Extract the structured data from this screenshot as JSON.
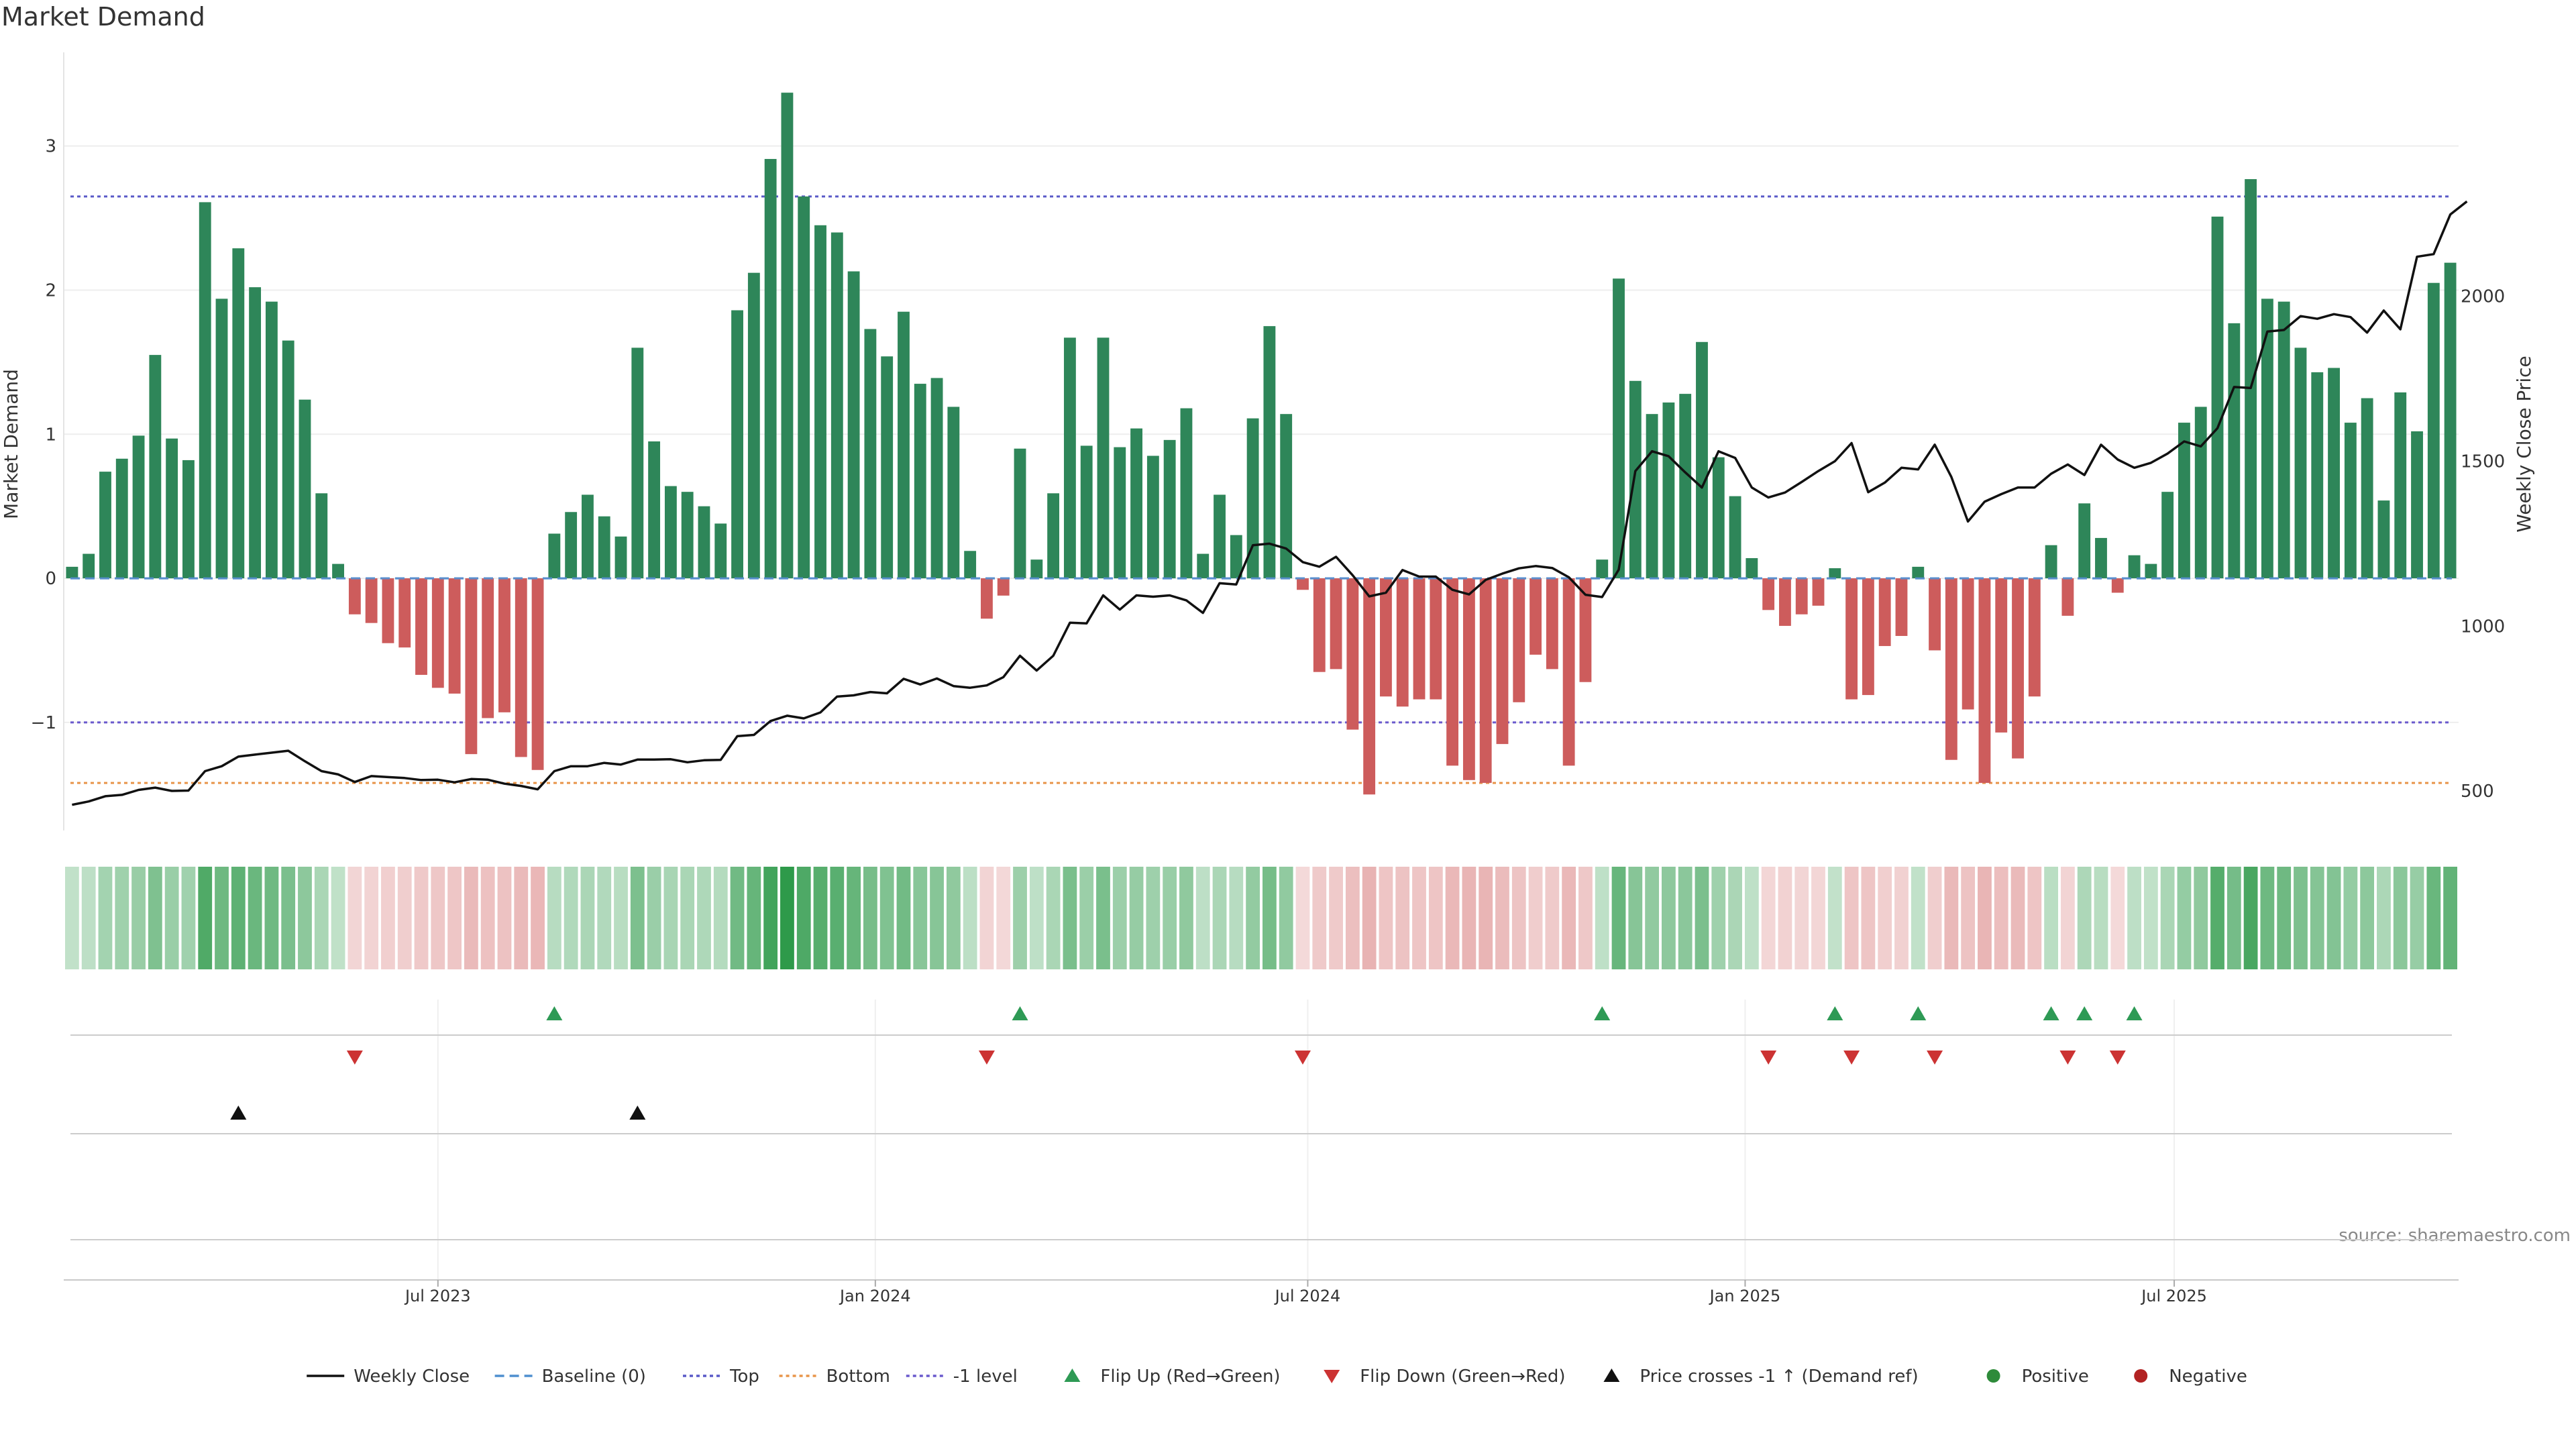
{
  "chart_data": {
    "type": "bar",
    "title": "Market Demand",
    "ylabel": "Market Demand",
    "y2label": "Weekly Close Price",
    "ylim": [
      -1.75,
      3.65
    ],
    "y2lim": [
      380,
      2740
    ],
    "yticks": [
      -1,
      0,
      1,
      2,
      3
    ],
    "yticks_labels": [
      "−1",
      "0",
      "1",
      "2",
      "3"
    ],
    "y2ticks": [
      500,
      1000,
      1500,
      2000
    ],
    "weeks_range": [
      -0.5,
      143.5
    ],
    "xticks": [
      {
        "label": "Jul 2023",
        "week": 22
      },
      {
        "label": "Jan 2024",
        "week": 48.3
      },
      {
        "label": "Jul 2024",
        "week": 74.3
      },
      {
        "label": "Jan 2025",
        "week": 100.6
      },
      {
        "label": "Jul 2025",
        "week": 126.4
      }
    ],
    "reference_lines": [
      {
        "name": "Top",
        "value": 2.65,
        "color": "#5a5ac8"
      },
      {
        "name": "-1 level",
        "value": -1.0,
        "color": "#6a5acd"
      },
      {
        "name": "Bottom",
        "value": -1.42,
        "color": "#e8954a"
      },
      {
        "name": "Baseline (0)",
        "value": 0,
        "color": "#4f8fcf"
      }
    ],
    "demand": [
      0.08,
      0.17,
      0.74,
      0.83,
      0.99,
      1.55,
      0.97,
      0.82,
      2.61,
      1.94,
      2.29,
      2.02,
      1.92,
      1.65,
      1.24,
      0.59,
      0.1,
      -0.25,
      -0.31,
      -0.45,
      -0.48,
      -0.67,
      -0.76,
      -0.8,
      -1.22,
      -0.97,
      -0.93,
      -1.24,
      -1.33,
      0.31,
      0.46,
      0.58,
      0.43,
      0.29,
      1.6,
      0.95,
      0.64,
      0.6,
      0.5,
      0.38,
      1.86,
      2.12,
      2.91,
      3.37,
      2.65,
      2.45,
      2.4,
      2.13,
      1.73,
      1.54,
      1.85,
      1.35,
      1.39,
      1.19,
      0.19,
      -0.28,
      -0.12,
      0.9,
      0.13,
      0.59,
      1.67,
      0.92,
      1.67,
      0.91,
      1.04,
      0.85,
      0.96,
      1.18,
      0.17,
      0.58,
      0.3,
      1.11,
      1.75,
      1.14,
      -0.08,
      -0.65,
      -0.63,
      -1.05,
      -1.5,
      -0.82,
      -0.89,
      -0.84,
      -0.84,
      -1.3,
      -1.4,
      -1.42,
      -1.15,
      -0.86,
      -0.53,
      -0.63,
      -1.3,
      -0.72,
      0.13,
      2.08,
      1.37,
      1.14,
      1.22,
      1.28,
      1.64,
      0.84,
      0.57,
      0.14,
      -0.22,
      -0.33,
      -0.25,
      -0.19,
      0.07,
      -0.84,
      -0.81,
      -0.47,
      -0.4,
      0.08,
      -0.5,
      -1.26,
      -0.91,
      -1.42,
      -1.07,
      -1.25,
      -0.82,
      0.23,
      -0.26,
      0.52,
      0.28,
      -0.1,
      0.16,
      0.1,
      0.6,
      1.08,
      1.19,
      2.51,
      1.77,
      2.77,
      1.94,
      1.92,
      1.6,
      1.43,
      1.46,
      1.08,
      1.25,
      0.54,
      1.29,
      1.02,
      2.05,
      2.19
    ],
    "price": [
      458,
      468,
      484,
      488,
      503,
      510,
      500,
      501,
      560,
      575,
      604,
      610,
      616,
      622,
      590,
      560,
      550,
      527,
      545,
      542,
      539,
      533,
      534,
      526,
      536,
      534,
      522,
      515,
      505,
      560,
      575,
      575,
      585,
      580,
      595,
      595,
      596,
      587,
      593,
      594,
      666,
      670,
      712,
      728,
      720,
      738,
      786,
      790,
      800,
      796,
      840,
      823,
      841,
      818,
      813,
      820,
      845,
      910,
      865,
      910,
      1010,
      1008,
      1093,
      1050,
      1093,
      1089,
      1093,
      1078,
      1040,
      1130,
      1126,
      1245,
      1250,
      1235,
      1194,
      1180,
      1210,
      1154,
      1090,
      1101,
      1170,
      1150,
      1150,
      1110,
      1096,
      1140,
      1159,
      1175,
      1182,
      1176,
      1148,
      1095,
      1088,
      1171,
      1470,
      1530,
      1515,
      1466,
      1420,
      1530,
      1510,
      1420,
      1390,
      1405,
      1437,
      1470,
      1500,
      1555,
      1406,
      1435,
      1480,
      1475,
      1550,
      1452,
      1317,
      1377,
      1400,
      1420,
      1420,
      1462,
      1490,
      1458,
      1550,
      1505,
      1480,
      1495,
      1523,
      1560,
      1545,
      1600,
      1725,
      1722,
      1893,
      1898,
      1940,
      1932,
      1946,
      1937,
      1890,
      1957,
      1900,
      2120,
      2128,
      2248,
      2288
    ],
    "flip_up_weeks": [
      29,
      57,
      92,
      106,
      111,
      119,
      121,
      124
    ],
    "flip_down_weeks": [
      17,
      55,
      74,
      102,
      107,
      112,
      120,
      123
    ],
    "price_cross_weeks": [
      10,
      34
    ],
    "watermark": "source: sharemaestro.com",
    "legend": [
      {
        "label": "Weekly Close",
        "kind": "line-solid",
        "color": "#111111"
      },
      {
        "label": "Baseline (0)",
        "kind": "line-dash",
        "color": "#4f8fcf"
      },
      {
        "label": "Top",
        "kind": "line-dot",
        "color": "#5a5ac8"
      },
      {
        "label": "Bottom",
        "kind": "line-dot",
        "color": "#e8954a"
      },
      {
        "label": "-1 level",
        "kind": "line-dot",
        "color": "#6a5acd"
      },
      {
        "label": "Flip Up (Red→Green)",
        "kind": "tri-up",
        "color": "#2e9a55"
      },
      {
        "label": "Flip Down (Green→Red)",
        "kind": "tri-down",
        "color": "#cc3333"
      },
      {
        "label": "Price crosses -1 ↑ (Demand ref)",
        "kind": "tri-up",
        "color": "#111111"
      },
      {
        "label": "Positive",
        "kind": "dot",
        "color": "#2e8b3a"
      },
      {
        "label": "Negative",
        "kind": "dot",
        "color": "#b22222"
      }
    ],
    "colors": {
      "positive_bar": "#2e8659",
      "negative_bar": "#cd5c5c",
      "price_line": "#111111",
      "heat_positive": "#2e9a4a",
      "heat_negative": "#d98080",
      "grid": "#eeeeee",
      "axis": "#cccccc",
      "tick_text": "#333333"
    }
  }
}
